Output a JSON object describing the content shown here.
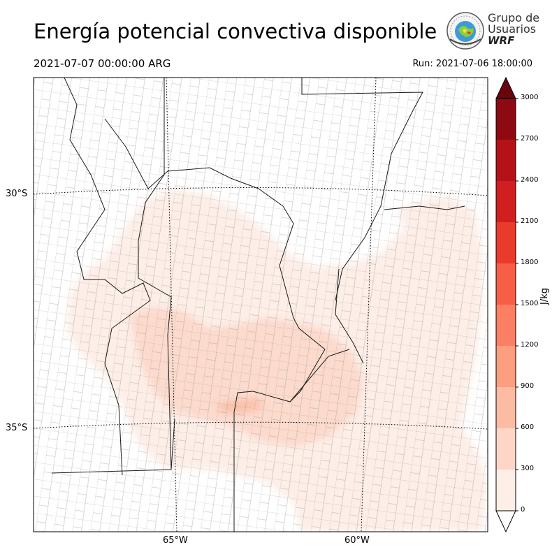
{
  "title": "Energía potencial convectiva disponible",
  "valid_time": "2021-07-07 00:00:00 ARG",
  "run_time": "Run: 2021-07-06 18:00:00",
  "logo": {
    "line1": "Grupo de",
    "line2": "Usuarios",
    "line3": "WRF",
    "icon": "wrf-globe-seal-icon"
  },
  "map": {
    "lat_labels": [
      "30°S",
      "35°S"
    ],
    "lon_labels": [
      "65°W",
      "60°W"
    ],
    "field": "CAPE",
    "max_region_value_approx": 600
  },
  "colorbar": {
    "unit": "J/kg",
    "ticks": [
      "0",
      "300",
      "600",
      "900",
      "1200",
      "1500",
      "1800",
      "2100",
      "2400",
      "2700",
      "3000"
    ],
    "colors": [
      "#fdeee7",
      "#fdd6c8",
      "#fcbca3",
      "#fc9e80",
      "#fb7f62",
      "#f65e46",
      "#ea3a2c",
      "#d11f20",
      "#b51218",
      "#8e0a12"
    ],
    "extend_top_color": "#68050d"
  }
}
